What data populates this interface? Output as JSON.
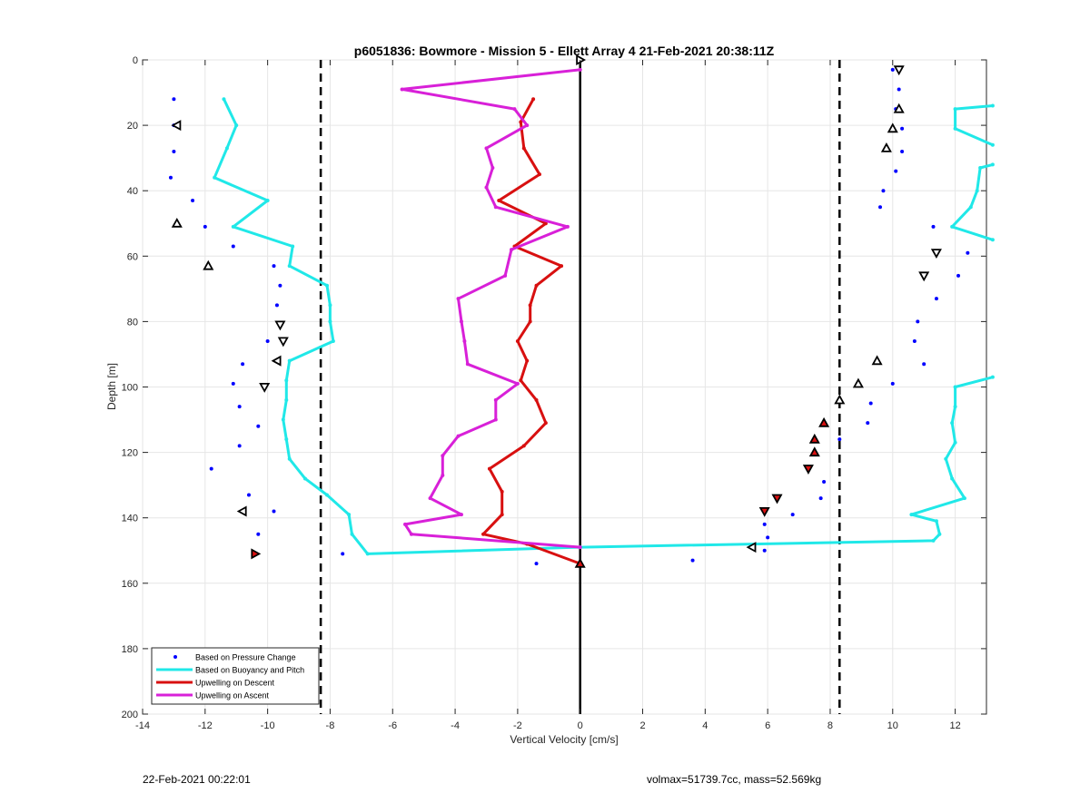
{
  "chart_data": {
    "type": "scatter",
    "title": "p6051836: Bowmore - Mission 5 - Ellett Array 4 21-Feb-2021 20:38:11Z",
    "xlabel": "Vertical Velocity [cm/s]",
    "ylabel": "Depth [m]",
    "xlim": [
      -14,
      13
    ],
    "ylim": [
      0,
      200
    ],
    "y_reversed": true,
    "grid": true,
    "legend_position": "bottom-left",
    "x_ticks": [
      -14,
      -12,
      -10,
      -8,
      -6,
      -4,
      -2,
      0,
      2,
      4,
      6,
      8,
      10,
      12
    ],
    "y_ticks": [
      0,
      20,
      40,
      60,
      80,
      100,
      120,
      140,
      160,
      180,
      200
    ],
    "reference_lines": {
      "zero": {
        "x": 0,
        "color": "#000000"
      },
      "dashed": [
        {
          "x": -8.3
        },
        {
          "x": 8.3
        }
      ]
    },
    "series": [
      {
        "name": "Based on Pressure Change",
        "kind": "points",
        "color": "#0000ff",
        "points": [
          [
            -13.0,
            12
          ],
          [
            -13.0,
            20
          ],
          [
            -13.0,
            28
          ],
          [
            -13.1,
            36
          ],
          [
            -12.4,
            43
          ],
          [
            -12.0,
            51
          ],
          [
            -11.1,
            57
          ],
          [
            -9.8,
            63
          ],
          [
            -9.6,
            69
          ],
          [
            -9.7,
            75
          ],
          [
            -9.6,
            81
          ],
          [
            -10.0,
            86
          ],
          [
            -9.7,
            92
          ],
          [
            -10.8,
            93
          ],
          [
            -11.1,
            99
          ],
          [
            -10.9,
            106
          ],
          [
            -10.3,
            112
          ],
          [
            -10.9,
            118
          ],
          [
            -11.8,
            125
          ],
          [
            -10.6,
            133
          ],
          [
            -9.8,
            138
          ],
          [
            -10.3,
            145
          ],
          [
            -10.4,
            151
          ],
          [
            -7.6,
            151
          ],
          [
            -1.4,
            154
          ],
          [
            10.0,
            3
          ],
          [
            10.2,
            9
          ],
          [
            10.1,
            15
          ],
          [
            10.3,
            21
          ],
          [
            10.3,
            28
          ],
          [
            10.1,
            34
          ],
          [
            9.7,
            40
          ],
          [
            9.6,
            45
          ],
          [
            11.3,
            51
          ],
          [
            12.4,
            59
          ],
          [
            12.1,
            66
          ],
          [
            11.4,
            73
          ],
          [
            10.8,
            80
          ],
          [
            10.7,
            86
          ],
          [
            11.0,
            93
          ],
          [
            10.0,
            99
          ],
          [
            9.3,
            105
          ],
          [
            9.2,
            111
          ],
          [
            8.3,
            116
          ],
          [
            7.8,
            129
          ],
          [
            7.7,
            134
          ],
          [
            6.8,
            139
          ],
          [
            5.9,
            142
          ],
          [
            6.0,
            146
          ],
          [
            5.9,
            150
          ],
          [
            3.6,
            153
          ]
        ]
      },
      {
        "name": "Based on Buoyancy and Pitch",
        "kind": "line",
        "color": "#20e8e8",
        "segments": [
          [
            [
              -11.4,
              12
            ],
            [
              -11.0,
              20
            ],
            [
              -11.3,
              27
            ],
            [
              -11.7,
              36
            ],
            [
              -10.0,
              43
            ],
            [
              -11.1,
              51
            ],
            [
              -9.2,
              57
            ],
            [
              -9.3,
              63
            ],
            [
              -8.1,
              69
            ],
            [
              -8.0,
              75
            ],
            [
              -8.0,
              80
            ],
            [
              -7.9,
              86
            ],
            [
              -9.3,
              92
            ],
            [
              -9.4,
              98
            ],
            [
              -9.4,
              104
            ],
            [
              -9.5,
              110
            ],
            [
              -9.4,
              116
            ],
            [
              -9.3,
              122
            ],
            [
              -8.8,
              128
            ],
            [
              -8.1,
              133
            ],
            [
              -7.4,
              139
            ],
            [
              -7.3,
              145
            ],
            [
              -6.8,
              151
            ],
            [
              0.0,
              149
            ],
            [
              11.3,
              147
            ],
            [
              11.5,
              145
            ],
            [
              11.4,
              141
            ],
            [
              10.6,
              139
            ],
            [
              12.3,
              134
            ],
            [
              11.9,
              128
            ],
            [
              11.7,
              122
            ],
            [
              12.0,
              117
            ],
            [
              11.9,
              111
            ],
            [
              12.0,
              106
            ],
            [
              12.0,
              100
            ],
            [
              13.2,
              97
            ]
          ],
          [
            [
              13.2,
              14
            ],
            [
              12.0,
              15
            ],
            [
              12.0,
              21
            ],
            [
              13.2,
              26
            ]
          ],
          [
            [
              13.2,
              32
            ],
            [
              12.8,
              33
            ],
            [
              12.7,
              40
            ],
            [
              12.5,
              45
            ],
            [
              11.9,
              51
            ],
            [
              13.2,
              55
            ]
          ]
        ]
      },
      {
        "name": "Upwelling on Descent",
        "kind": "line",
        "color": "#d81010",
        "points": [
          [
            -1.5,
            12
          ],
          [
            -1.9,
            19
          ],
          [
            -1.8,
            27
          ],
          [
            -1.3,
            35
          ],
          [
            -2.6,
            43
          ],
          [
            -1.1,
            50
          ],
          [
            -2.1,
            57
          ],
          [
            -0.6,
            63
          ],
          [
            -1.4,
            69
          ],
          [
            -1.6,
            75
          ],
          [
            -1.6,
            80
          ],
          [
            -2.0,
            86
          ],
          [
            -1.7,
            92
          ],
          [
            -1.9,
            98
          ],
          [
            -1.4,
            104
          ],
          [
            -1.1,
            111
          ],
          [
            -1.8,
            118
          ],
          [
            -2.9,
            125
          ],
          [
            -2.5,
            132
          ],
          [
            -2.5,
            139
          ],
          [
            -3.1,
            145
          ],
          [
            -1.7,
            148
          ],
          [
            0.0,
            154
          ]
        ]
      },
      {
        "name": "Upwelling on Ascent",
        "kind": "line",
        "color": "#d820d8",
        "points": [
          [
            0.0,
            3
          ],
          [
            -5.7,
            9
          ],
          [
            -2.1,
            15
          ],
          [
            -1.7,
            20
          ],
          [
            -3.0,
            27
          ],
          [
            -2.8,
            33
          ],
          [
            -3.0,
            39
          ],
          [
            -2.7,
            45
          ],
          [
            -0.4,
            51
          ],
          [
            -2.2,
            58
          ],
          [
            -2.4,
            66
          ],
          [
            -3.9,
            73
          ],
          [
            -3.8,
            80
          ],
          [
            -3.7,
            86
          ],
          [
            -3.6,
            93
          ],
          [
            -2.0,
            99
          ],
          [
            -2.7,
            104
          ],
          [
            -2.7,
            110
          ],
          [
            -3.9,
            115
          ],
          [
            -4.4,
            121
          ],
          [
            -4.4,
            127
          ],
          [
            -4.8,
            134
          ],
          [
            -3.8,
            139
          ],
          [
            -5.6,
            142
          ],
          [
            -5.4,
            145
          ],
          [
            0.0,
            149
          ]
        ]
      }
    ],
    "triangle_markers": [
      {
        "x": 0.0,
        "y": 0,
        "dir": "right",
        "fill": "#ffffff"
      },
      {
        "x": 10.2,
        "y": 3,
        "dir": "down",
        "fill": "#ffffff"
      },
      {
        "x": 10.2,
        "y": 15,
        "dir": "up",
        "fill": "#ffffff"
      },
      {
        "x": 10.0,
        "y": 21,
        "dir": "up",
        "fill": "#ffffff"
      },
      {
        "x": 9.8,
        "y": 27,
        "dir": "up",
        "fill": "#ffffff"
      },
      {
        "x": -12.9,
        "y": 20,
        "dir": "left",
        "fill": "#ffffff"
      },
      {
        "x": -12.9,
        "y": 50,
        "dir": "up",
        "fill": "#ffffff"
      },
      {
        "x": -11.9,
        "y": 63,
        "dir": "up",
        "fill": "#ffffff"
      },
      {
        "x": 11.4,
        "y": 59,
        "dir": "down",
        "fill": "#ffffff"
      },
      {
        "x": 11.0,
        "y": 66,
        "dir": "down",
        "fill": "#ffffff"
      },
      {
        "x": -9.6,
        "y": 81,
        "dir": "down",
        "fill": "#ffffff"
      },
      {
        "x": -9.5,
        "y": 86,
        "dir": "down",
        "fill": "#ffffff"
      },
      {
        "x": -9.7,
        "y": 92,
        "dir": "left",
        "fill": "#ffffff"
      },
      {
        "x": -10.1,
        "y": 100,
        "dir": "down",
        "fill": "#ffffff"
      },
      {
        "x": 9.5,
        "y": 92,
        "dir": "up",
        "fill": "#ffffff"
      },
      {
        "x": 8.9,
        "y": 99,
        "dir": "up",
        "fill": "#ffffff"
      },
      {
        "x": 8.3,
        "y": 104,
        "dir": "up",
        "fill": "#ffffff"
      },
      {
        "x": 7.8,
        "y": 111,
        "dir": "up",
        "fill": "#d81010"
      },
      {
        "x": 7.5,
        "y": 116,
        "dir": "up",
        "fill": "#d81010"
      },
      {
        "x": 7.5,
        "y": 120,
        "dir": "up",
        "fill": "#d81010"
      },
      {
        "x": 7.3,
        "y": 125,
        "dir": "down",
        "fill": "#d81010"
      },
      {
        "x": 6.3,
        "y": 134,
        "dir": "down",
        "fill": "#d81010"
      },
      {
        "x": 5.9,
        "y": 138,
        "dir": "down",
        "fill": "#d81010"
      },
      {
        "x": 5.5,
        "y": 149,
        "dir": "left",
        "fill": "#ffffff"
      },
      {
        "x": -10.8,
        "y": 138,
        "dir": "left",
        "fill": "#ffffff"
      },
      {
        "x": -10.4,
        "y": 151,
        "dir": "right",
        "fill": "#d81010"
      },
      {
        "x": 0.0,
        "y": 154,
        "dir": "up",
        "fill": "#d81010"
      }
    ]
  },
  "footer": {
    "left": "22-Feb-2021 00:22:01",
    "right": "volmax=51739.7cc, mass=52.569kg"
  }
}
